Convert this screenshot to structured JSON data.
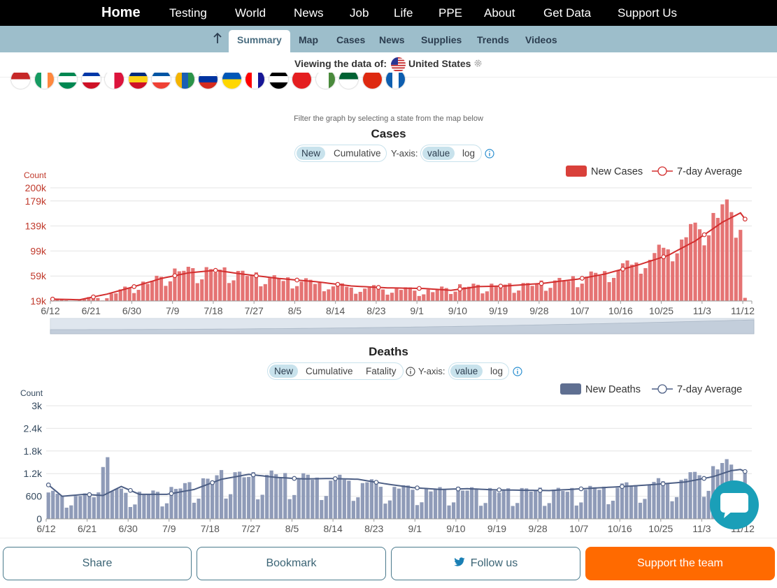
{
  "topnav": {
    "home": "Home",
    "testing": "Testing",
    "world": "World",
    "news": "News",
    "job": "Job",
    "life": "Life",
    "ppe": "PPE",
    "about": "About",
    "get_data": "Get Data",
    "support": "Support Us"
  },
  "subnav": {
    "summary": "Summary",
    "map": "Map",
    "cases": "Cases",
    "news": "News",
    "supplies": "Supplies",
    "trends": "Trends",
    "videos": "Videos"
  },
  "viewing": {
    "label": "Viewing the data of:",
    "country": "United States"
  },
  "filter_hint": "Filter the graph by selecting a state from the map below",
  "cases_controls": {
    "new": "New",
    "cumulative": "Cumulative",
    "yaxis": "Y-axis:",
    "value": "value",
    "log": "log"
  },
  "deaths_controls": {
    "new": "New",
    "cumulative": "Cumulative",
    "fatality": "Fatality",
    "yaxis": "Y-axis:",
    "value": "value",
    "log": "log"
  },
  "bottom": {
    "share": "Share",
    "bookmark": "Bookmark",
    "follow": "Follow us",
    "support": "Support the team"
  },
  "colors": {
    "cases": "#e57373",
    "cases_line": "#d32f2f",
    "deaths": "#8f9bb8",
    "deaths_line": "#4d5f85",
    "accent": "#ff6a00",
    "chat": "#1a9fb8"
  },
  "chart_data": [
    {
      "type": "bar",
      "title": "Cases",
      "ylabel": "Count",
      "legend": [
        "New Cases",
        "7-day Average"
      ],
      "legend_position": "top-right",
      "y_ticks": [
        "19k",
        "59k",
        "99k",
        "139k",
        "179k",
        "200k"
      ],
      "x_ticks": [
        "6/12",
        "6/21",
        "6/30",
        "7/9",
        "7/18",
        "7/27",
        "8/5",
        "8/14",
        "8/23",
        "9/1",
        "9/10",
        "9/19",
        "9/28",
        "10/7",
        "10/16",
        "10/25",
        "11/3",
        "11/12"
      ],
      "ylim": [
        19000,
        200000
      ],
      "start_date": "2020-06-12",
      "anchor_values": [
        [
          0,
          21000
        ],
        [
          4,
          22000
        ],
        [
          9,
          24000
        ],
        [
          13,
          31000
        ],
        [
          17,
          42000
        ],
        [
          21,
          50000
        ],
        [
          25,
          60000
        ],
        [
          29,
          72000
        ],
        [
          32,
          66000
        ],
        [
          36,
          70000
        ],
        [
          40,
          65000
        ],
        [
          44,
          62000
        ],
        [
          48,
          56000
        ],
        [
          52,
          55000
        ],
        [
          56,
          52000
        ],
        [
          60,
          48000
        ],
        [
          64,
          44000
        ],
        [
          68,
          42000
        ],
        [
          72,
          41000
        ],
        [
          76,
          40000
        ],
        [
          80,
          38000
        ],
        [
          84,
          36000
        ],
        [
          88,
          42000
        ],
        [
          92,
          44000
        ],
        [
          96,
          43000
        ],
        [
          100,
          44000
        ],
        [
          104,
          45000
        ],
        [
          108,
          48000
        ],
        [
          112,
          52000
        ],
        [
          116,
          57000
        ],
        [
          120,
          63000
        ],
        [
          124,
          70000
        ],
        [
          128,
          82000
        ],
        [
          132,
          92000
        ],
        [
          136,
          110000
        ],
        [
          140,
          128000
        ],
        [
          144,
          150000
        ],
        [
          148,
          170000
        ],
        [
          152,
          166000
        ],
        [
          153,
          160000
        ]
      ],
      "weekly_dips": [
        0.72,
        0.8
      ],
      "average_anchor": [
        [
          0,
          22000
        ],
        [
          6,
          21000
        ],
        [
          12,
          30000
        ],
        [
          18,
          42000
        ],
        [
          24,
          55000
        ],
        [
          30,
          64000
        ],
        [
          36,
          68000
        ],
        [
          42,
          62000
        ],
        [
          50,
          55000
        ],
        [
          58,
          50000
        ],
        [
          66,
          43000
        ],
        [
          74,
          40000
        ],
        [
          82,
          39000
        ],
        [
          88,
          36000
        ],
        [
          94,
          42000
        ],
        [
          100,
          43000
        ],
        [
          108,
          47000
        ],
        [
          116,
          54000
        ],
        [
          122,
          62000
        ],
        [
          130,
          78000
        ],
        [
          136,
          92000
        ],
        [
          142,
          115000
        ],
        [
          148,
          145000
        ],
        [
          152,
          160000
        ],
        [
          154,
          140000
        ]
      ]
    },
    {
      "type": "bar",
      "title": "Deaths",
      "ylabel": "Count",
      "legend": [
        "New Deaths",
        "7-day Average"
      ],
      "legend_position": "top-right",
      "y_ticks": [
        "0",
        "600",
        "1.2k",
        "1.8k",
        "2.4k",
        "3k"
      ],
      "x_ticks": [
        "6/12",
        "6/21",
        "6/30",
        "7/9",
        "7/18",
        "7/27",
        "8/5",
        "8/14",
        "8/23",
        "9/1",
        "9/10",
        "9/19",
        "9/28",
        "10/7",
        "10/16",
        "10/25",
        "11/3",
        "11/12"
      ],
      "ylim": [
        0,
        3000
      ],
      "start_date": "2020-06-12",
      "anchor_values": [
        [
          0,
          700
        ],
        [
          5,
          650
        ],
        [
          10,
          620
        ],
        [
          12,
          2500
        ],
        [
          14,
          800
        ],
        [
          18,
          700
        ],
        [
          22,
          680
        ],
        [
          26,
          750
        ],
        [
          30,
          900
        ],
        [
          34,
          1000
        ],
        [
          38,
          1200
        ],
        [
          42,
          1180
        ],
        [
          46,
          1150
        ],
        [
          50,
          1200
        ],
        [
          54,
          1150
        ],
        [
          58,
          1120
        ],
        [
          62,
          1100
        ],
        [
          66,
          1080
        ],
        [
          70,
          1000
        ],
        [
          74,
          900
        ],
        [
          78,
          850
        ],
        [
          82,
          800
        ],
        [
          86,
          780
        ],
        [
          90,
          800
        ],
        [
          94,
          780
        ],
        [
          98,
          750
        ],
        [
          102,
          760
        ],
        [
          106,
          780
        ],
        [
          110,
          760
        ],
        [
          114,
          770
        ],
        [
          118,
          800
        ],
        [
          122,
          850
        ],
        [
          126,
          900
        ],
        [
          130,
          950
        ],
        [
          134,
          1000
        ],
        [
          138,
          1050
        ],
        [
          142,
          1200
        ],
        [
          146,
          1400
        ],
        [
          150,
          1500
        ],
        [
          152,
          1800
        ],
        [
          153,
          1200
        ]
      ],
      "weekly_dips": [
        0.45,
        0.55
      ],
      "average_anchor": [
        [
          0,
          900
        ],
        [
          3,
          600
        ],
        [
          8,
          650
        ],
        [
          12,
          620
        ],
        [
          16,
          860
        ],
        [
          20,
          650
        ],
        [
          26,
          650
        ],
        [
          32,
          780
        ],
        [
          38,
          1050
        ],
        [
          44,
          1180
        ],
        [
          50,
          1100
        ],
        [
          56,
          1060
        ],
        [
          62,
          1070
        ],
        [
          68,
          1050
        ],
        [
          74,
          930
        ],
        [
          80,
          830
        ],
        [
          86,
          780
        ],
        [
          92,
          800
        ],
        [
          98,
          770
        ],
        [
          104,
          760
        ],
        [
          110,
          750
        ],
        [
          116,
          790
        ],
        [
          122,
          830
        ],
        [
          128,
          870
        ],
        [
          134,
          920
        ],
        [
          140,
          980
        ],
        [
          146,
          1120
        ],
        [
          150,
          1280
        ],
        [
          152,
          1310
        ],
        [
          154,
          1200
        ]
      ]
    }
  ]
}
